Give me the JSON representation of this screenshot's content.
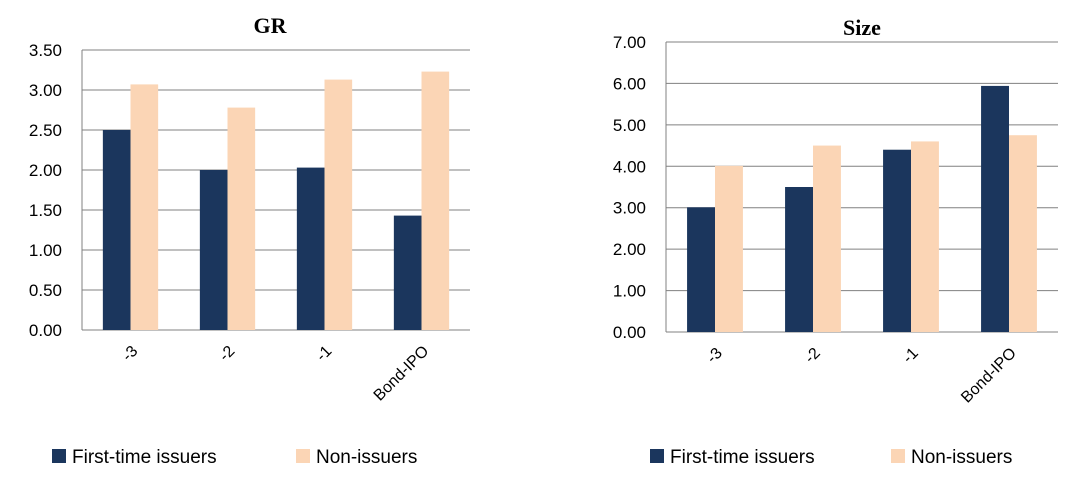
{
  "colors": {
    "first_time": "#1b365d",
    "non_issuers": "#fbd5b5",
    "grid": "#808080"
  },
  "chart_data": [
    {
      "type": "bar",
      "title": "GR",
      "categories": [
        "-3",
        "-2",
        "-1",
        "Bond-IPO"
      ],
      "ylim": [
        0,
        3.5
      ],
      "yticks": [
        "0.00",
        "0.50",
        "1.00",
        "1.50",
        "2.00",
        "2.50",
        "3.00",
        "3.50"
      ],
      "grid": true,
      "legend": "bottom",
      "series": [
        {
          "name": "First-time issuers",
          "values": [
            2.5,
            2.0,
            2.03,
            1.43
          ]
        },
        {
          "name": "Non-issuers",
          "values": [
            3.07,
            2.78,
            3.13,
            3.23
          ]
        }
      ]
    },
    {
      "type": "bar",
      "title": "Size",
      "categories": [
        "-3",
        "-2",
        "-1",
        "Bond-IPO"
      ],
      "ylim": [
        0,
        7
      ],
      "yticks": [
        "0.00",
        "1.00",
        "2.00",
        "3.00",
        "4.00",
        "5.00",
        "6.00",
        "7.00"
      ],
      "grid": true,
      "legend": "bottom",
      "series": [
        {
          "name": "First-time issuers",
          "values": [
            3.01,
            3.5,
            4.4,
            5.94
          ]
        },
        {
          "name": "Non-issuers",
          "values": [
            4.01,
            4.5,
            4.6,
            4.75
          ]
        }
      ]
    }
  ]
}
